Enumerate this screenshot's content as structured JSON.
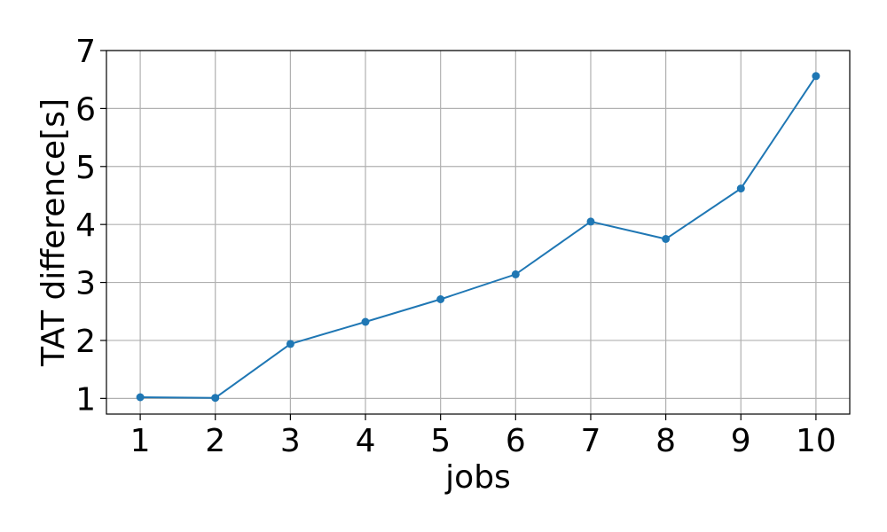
{
  "chart_data": {
    "type": "line",
    "xlabel": "jobs",
    "ylabel": "TAT difference[s]",
    "x": [
      1,
      2,
      3,
      4,
      5,
      6,
      7,
      8,
      9,
      10
    ],
    "series": [
      {
        "values": [
          1.02,
          1.01,
          1.94,
          2.32,
          2.71,
          3.14,
          4.05,
          3.75,
          4.62,
          6.56
        ],
        "color": "#1f77b4",
        "marker": "circle"
      }
    ],
    "xlim": [
      0.55,
      10.45
    ],
    "ylim": [
      0.73,
      7.0
    ],
    "xticks": [
      "1",
      "2",
      "3",
      "4",
      "5",
      "6",
      "7",
      "8",
      "9",
      "10"
    ],
    "yticks": [
      "1",
      "2",
      "3",
      "4",
      "5",
      "6",
      "7"
    ],
    "grid": true,
    "legend": "none"
  }
}
